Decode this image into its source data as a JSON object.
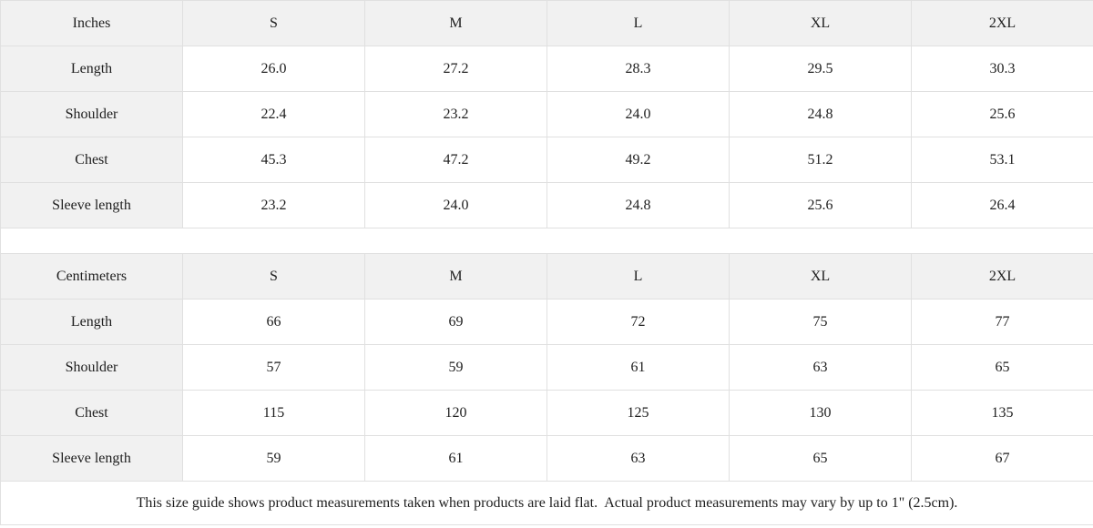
{
  "colors": {
    "header_bg": "#f1f1f1",
    "border": "#e0e0e0",
    "text": "#1e1e1e"
  },
  "tables": [
    {
      "unit_label": "Inches",
      "columns": [
        "S",
        "M",
        "L",
        "XL",
        "2XL"
      ],
      "rows": [
        {
          "label": "Length",
          "values": [
            "26.0",
            "27.2",
            "28.3",
            "29.5",
            "30.3"
          ]
        },
        {
          "label": "Shoulder",
          "values": [
            "22.4",
            "23.2",
            "24.0",
            "24.8",
            "25.6"
          ]
        },
        {
          "label": "Chest",
          "values": [
            "45.3",
            "47.2",
            "49.2",
            "51.2",
            "53.1"
          ]
        },
        {
          "label": "Sleeve length",
          "values": [
            "23.2",
            "24.0",
            "24.8",
            "25.6",
            "26.4"
          ]
        }
      ]
    },
    {
      "unit_label": "Centimeters",
      "columns": [
        "S",
        "M",
        "L",
        "XL",
        "2XL"
      ],
      "rows": [
        {
          "label": "Length",
          "values": [
            "66",
            "69",
            "72",
            "75",
            "77"
          ]
        },
        {
          "label": "Shoulder",
          "values": [
            "57",
            "59",
            "61",
            "63",
            "65"
          ]
        },
        {
          "label": "Chest",
          "values": [
            "115",
            "120",
            "125",
            "130",
            "135"
          ]
        },
        {
          "label": "Sleeve length",
          "values": [
            "59",
            "61",
            "63",
            "65",
            "67"
          ]
        }
      ]
    }
  ],
  "footer": {
    "note": "This size guide shows product measurements taken when products are laid flat.  Actual product measurements may vary by up to 1\" (2.5cm)."
  }
}
